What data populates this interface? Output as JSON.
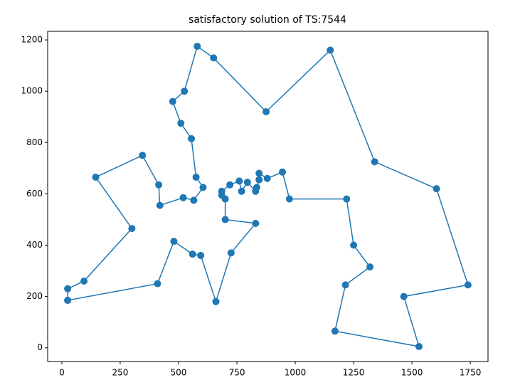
{
  "chart_data": {
    "type": "line",
    "title": "satisfactory solution of TS:7544",
    "markers": true,
    "series": [
      {
        "color": "#1f77b4",
        "x": [
          25,
          25,
          95,
          300,
          145,
          345,
          415,
          420,
          520,
          565,
          605,
          575,
          555,
          510,
          475,
          525,
          580,
          650,
          875,
          1150,
          1340,
          1605,
          1740,
          1465,
          1530,
          1170,
          1215,
          1320,
          1250,
          1220,
          975,
          945,
          880,
          845,
          845,
          835,
          830,
          795,
          770,
          760,
          720,
          685,
          685,
          700,
          700,
          830,
          725,
          660,
          595,
          560,
          480,
          410,
          25
        ],
        "values": [
          185,
          230,
          260,
          465,
          665,
          750,
          635,
          555,
          585,
          575,
          625,
          665,
          815,
          875,
          960,
          1000,
          1175,
          1130,
          920,
          1160,
          725,
          620,
          245,
          200,
          5,
          65,
          245,
          315,
          400,
          580,
          580,
          685,
          660,
          680,
          655,
          625,
          610,
          645,
          610,
          650,
          635,
          610,
          595,
          580,
          500,
          485,
          370,
          180,
          360,
          365,
          415,
          250,
          185
        ]
      }
    ],
    "xlim": [
      -60.75,
      1825.75
    ],
    "ylim": [
      -53.5,
      1233.5
    ],
    "xticks": [
      0,
      250,
      500,
      750,
      1000,
      1250,
      1500,
      1750
    ],
    "yticks": [
      0,
      200,
      400,
      600,
      800,
      1000,
      1200
    ]
  }
}
